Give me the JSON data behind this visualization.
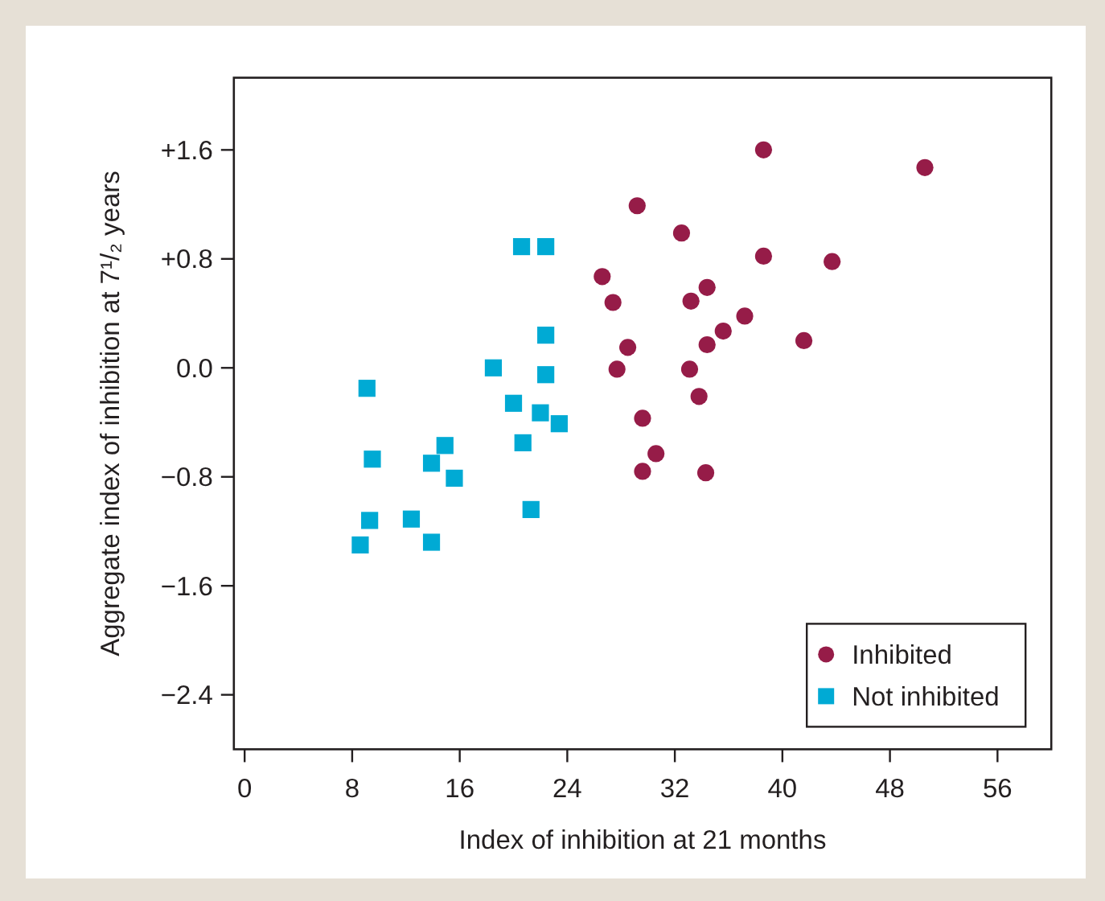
{
  "chart_data": {
    "type": "scatter",
    "xlabel": "Index of inhibition at 21 months",
    "ylabel": "Aggregate index of inhibition at 7¹/₂ years",
    "xlim": [
      -0.8,
      60
    ],
    "xticks": [
      0,
      8,
      16,
      24,
      32,
      40,
      48,
      56
    ],
    "ylim": [
      -2.8,
      2.13
    ],
    "yticks": [
      {
        "value": 1.6,
        "label": "+1.6"
      },
      {
        "value": 0.8,
        "label": "+0.8"
      },
      {
        "value": 0,
        "label": "0.0"
      },
      {
        "value": -0.8,
        "label": "−0.8"
      },
      {
        "value": -1.6,
        "label": "−1.6"
      },
      {
        "value": -2.4,
        "label": "−2.4"
      }
    ],
    "grid": false,
    "legend": "bottom right",
    "series": [
      {
        "name": "Inhibited",
        "color": "#961c48",
        "marker": "circle",
        "x": [
          38.6,
          50.6,
          29.2,
          32.5,
          38.6,
          43.7,
          26.6,
          34.4,
          27.4,
          33.2,
          37.2,
          35.6,
          34.4,
          41.6,
          28.5,
          27.7,
          33.1,
          33.8,
          29.6,
          30.6,
          29.6,
          34.3
        ],
        "values": [
          1.6,
          1.47,
          1.19,
          0.99,
          0.82,
          0.78,
          0.67,
          0.59,
          0.48,
          0.49,
          0.38,
          0.27,
          0.17,
          0.2,
          0.15,
          -0.01,
          -0.01,
          -0.21,
          -0.37,
          -0.63,
          -0.76,
          -0.77
        ]
      },
      {
        "name": "Not inhibited",
        "color": "#00aad4",
        "marker": "square",
        "x": [
          20.6,
          22.4,
          22.4,
          18.5,
          22.4,
          9.1,
          20.0,
          22.0,
          23.4,
          20.7,
          14.9,
          9.5,
          13.9,
          15.6,
          21.3,
          9.3,
          12.4,
          8.6,
          13.9
        ],
        "values": [
          0.89,
          0.89,
          0.24,
          0.0,
          -0.05,
          -0.15,
          -0.26,
          -0.33,
          -0.41,
          -0.55,
          -0.57,
          -0.67,
          -0.7,
          -0.81,
          -1.04,
          -1.12,
          -1.11,
          -1.3,
          -1.28
        ]
      }
    ]
  }
}
